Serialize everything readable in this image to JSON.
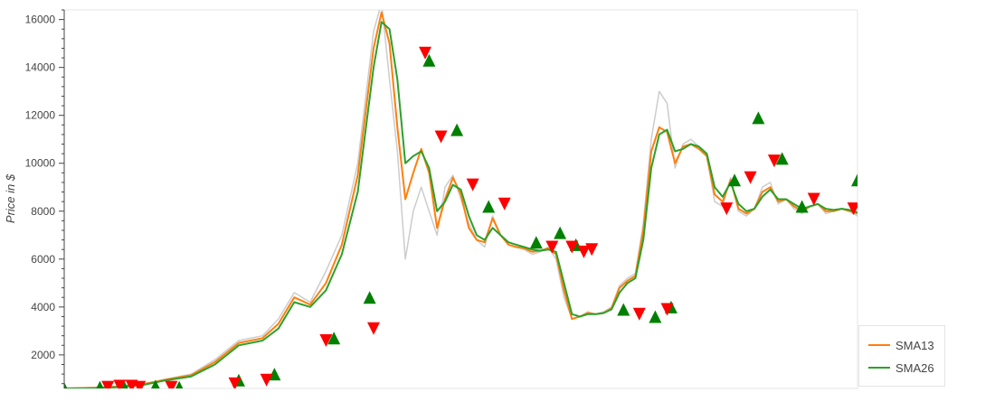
{
  "chart_data": {
    "type": "line",
    "title": "",
    "xlabel": "",
    "ylabel": "Price in $",
    "ylim": [
      600,
      16400
    ],
    "xlim": [
      0,
      100
    ],
    "yticks": [
      2000,
      4000,
      6000,
      8000,
      10000,
      12000,
      14000,
      16000
    ],
    "grid": false,
    "legend_position": "bottom-right",
    "colors": {
      "price": "#cccccc",
      "sma13": "#ff7f0e",
      "sma26": "#2ca02c",
      "buy": "#008000",
      "sell": "#ff0000"
    },
    "series": [
      {
        "key": "price",
        "x": [
          0,
          4,
          7,
          10,
          13,
          16,
          19,
          22,
          25,
          27,
          29,
          31,
          33,
          35,
          37,
          39,
          40,
          41,
          42,
          43,
          44,
          45,
          46,
          47,
          48,
          49,
          50,
          51,
          52,
          53,
          54,
          55,
          56,
          57,
          58,
          59,
          60,
          61,
          62,
          63,
          64,
          65,
          66,
          67,
          68,
          69,
          70,
          71,
          72,
          73,
          74,
          75,
          76,
          77,
          78,
          79,
          80,
          81,
          82,
          83,
          84,
          85,
          86,
          87,
          88,
          89,
          90,
          91,
          92,
          93,
          94,
          95,
          96,
          97,
          98,
          99,
          100
        ],
        "values": [
          600,
          650,
          700,
          800,
          1000,
          1200,
          1800,
          2600,
          2800,
          3500,
          4600,
          4200,
          5500,
          7000,
          10000,
          15500,
          16700,
          13500,
          10500,
          6000,
          8000,
          9000,
          8000,
          7000,
          9000,
          9500,
          8500,
          7500,
          6800,
          6500,
          7800,
          7000,
          6600,
          6500,
          6400,
          6200,
          6300,
          6500,
          6000,
          4400,
          3500,
          3600,
          3800,
          3700,
          3800,
          4000,
          4900,
          5200,
          5400,
          7500,
          11000,
          13000,
          12500,
          9800,
          10800,
          11000,
          10700,
          10300,
          8400,
          8200,
          9400,
          8000,
          7800,
          8100,
          9000,
          9200,
          8300,
          8500,
          8100,
          7900,
          8200,
          8300,
          7900,
          8000,
          8100,
          8000,
          7800
        ]
      },
      {
        "key": "sma13",
        "name": "SMA13",
        "x": [
          0,
          4,
          7,
          10,
          13,
          16,
          19,
          22,
          25,
          27,
          29,
          31,
          33,
          35,
          37,
          39,
          40,
          41,
          42,
          43,
          44,
          45,
          46,
          47,
          48,
          49,
          50,
          51,
          52,
          53,
          54,
          55,
          56,
          57,
          58,
          59,
          60,
          61,
          62,
          63,
          64,
          65,
          66,
          67,
          68,
          69,
          70,
          71,
          72,
          73,
          74,
          75,
          76,
          77,
          78,
          79,
          80,
          81,
          82,
          83,
          84,
          85,
          86,
          87,
          88,
          89,
          90,
          91,
          92,
          93,
          94,
          95,
          96,
          97,
          98,
          99,
          100
        ],
        "values": [
          600,
          630,
          680,
          780,
          980,
          1150,
          1700,
          2500,
          2700,
          3300,
          4400,
          4100,
          5000,
          6600,
          9500,
          14800,
          16300,
          15000,
          11500,
          8500,
          9600,
          10600,
          9600,
          7300,
          8500,
          9400,
          8700,
          7300,
          6800,
          6700,
          7700,
          7000,
          6600,
          6500,
          6450,
          6300,
          6350,
          6450,
          6200,
          4700,
          3500,
          3600,
          3750,
          3700,
          3750,
          3950,
          4800,
          5100,
          5300,
          7200,
          10500,
          11500,
          11300,
          10000,
          10700,
          10800,
          10600,
          10300,
          8700,
          8400,
          9300,
          8100,
          7900,
          8100,
          8800,
          9000,
          8400,
          8500,
          8200,
          8000,
          8200,
          8300,
          8000,
          8000,
          8100,
          8000,
          7900
        ]
      },
      {
        "key": "sma26",
        "name": "SMA26",
        "x": [
          0,
          4,
          7,
          10,
          13,
          16,
          19,
          22,
          25,
          27,
          29,
          31,
          33,
          35,
          37,
          39,
          40,
          41,
          42,
          43,
          44,
          45,
          46,
          47,
          48,
          49,
          50,
          51,
          52,
          53,
          54,
          55,
          56,
          57,
          58,
          59,
          60,
          61,
          62,
          63,
          64,
          65,
          66,
          67,
          68,
          69,
          70,
          71,
          72,
          73,
          74,
          75,
          76,
          77,
          78,
          79,
          80,
          81,
          82,
          83,
          84,
          85,
          86,
          87,
          88,
          89,
          90,
          91,
          92,
          93,
          94,
          95,
          96,
          97,
          98,
          99,
          100
        ],
        "values": [
          600,
          610,
          660,
          750,
          950,
          1100,
          1600,
          2400,
          2600,
          3100,
          4200,
          4000,
          4700,
          6200,
          8800,
          14000,
          15900,
          15600,
          13500,
          10000,
          10300,
          10500,
          9800,
          8000,
          8400,
          9100,
          8900,
          7800,
          7000,
          6800,
          7300,
          7000,
          6700,
          6600,
          6500,
          6400,
          6350,
          6400,
          6300,
          5000,
          3700,
          3600,
          3700,
          3700,
          3750,
          3900,
          4600,
          5000,
          5200,
          6800,
          9800,
          11200,
          11400,
          10500,
          10600,
          10800,
          10700,
          10400,
          9000,
          8600,
          9200,
          8300,
          8000,
          8100,
          8600,
          8900,
          8500,
          8500,
          8300,
          8100,
          8200,
          8300,
          8100,
          8050,
          8100,
          8050,
          7950
        ]
      }
    ],
    "markers": {
      "buy": [
        {
          "x": 0,
          "y": 600
        },
        {
          "x": 4.5,
          "y": 650
        },
        {
          "x": 7.5,
          "y": 700
        },
        {
          "x": 11.5,
          "y": 700
        },
        {
          "x": 14.5,
          "y": 650
        },
        {
          "x": 22,
          "y": 950
        },
        {
          "x": 26.5,
          "y": 1200
        },
        {
          "x": 34,
          "y": 2700
        },
        {
          "x": 38.5,
          "y": 4400
        },
        {
          "x": 46,
          "y": 14300
        },
        {
          "x": 49.5,
          "y": 11400
        },
        {
          "x": 53.5,
          "y": 8200
        },
        {
          "x": 59.5,
          "y": 6700
        },
        {
          "x": 62.5,
          "y": 7100
        },
        {
          "x": 64.5,
          "y": 6600
        },
        {
          "x": 70.5,
          "y": 3900
        },
        {
          "x": 74.5,
          "y": 3600
        },
        {
          "x": 76.5,
          "y": 4000
        },
        {
          "x": 84.5,
          "y": 9300
        },
        {
          "x": 87.5,
          "y": 11900
        },
        {
          "x": 90.5,
          "y": 10200
        },
        {
          "x": 93,
          "y": 8200
        },
        {
          "x": 100,
          "y": 9300
        }
      ],
      "sell": [
        {
          "x": 5.5,
          "y": 650
        },
        {
          "x": 7,
          "y": 700
        },
        {
          "x": 8.5,
          "y": 700
        },
        {
          "x": 9.5,
          "y": 650
        },
        {
          "x": 13.5,
          "y": 650
        },
        {
          "x": 21.5,
          "y": 800
        },
        {
          "x": 25.5,
          "y": 950
        },
        {
          "x": 33,
          "y": 2600
        },
        {
          "x": 39,
          "y": 3100
        },
        {
          "x": 45.5,
          "y": 14600
        },
        {
          "x": 47.5,
          "y": 11100
        },
        {
          "x": 51.5,
          "y": 9100
        },
        {
          "x": 55.5,
          "y": 8300
        },
        {
          "x": 61.5,
          "y": 6500
        },
        {
          "x": 64,
          "y": 6500
        },
        {
          "x": 65.5,
          "y": 6300
        },
        {
          "x": 66.5,
          "y": 6400
        },
        {
          "x": 72.5,
          "y": 3700
        },
        {
          "x": 76,
          "y": 3900
        },
        {
          "x": 83.5,
          "y": 8100
        },
        {
          "x": 86.5,
          "y": 9400
        },
        {
          "x": 89.5,
          "y": 10100
        },
        {
          "x": 94.5,
          "y": 8500
        },
        {
          "x": 99.5,
          "y": 8100
        }
      ]
    }
  }
}
